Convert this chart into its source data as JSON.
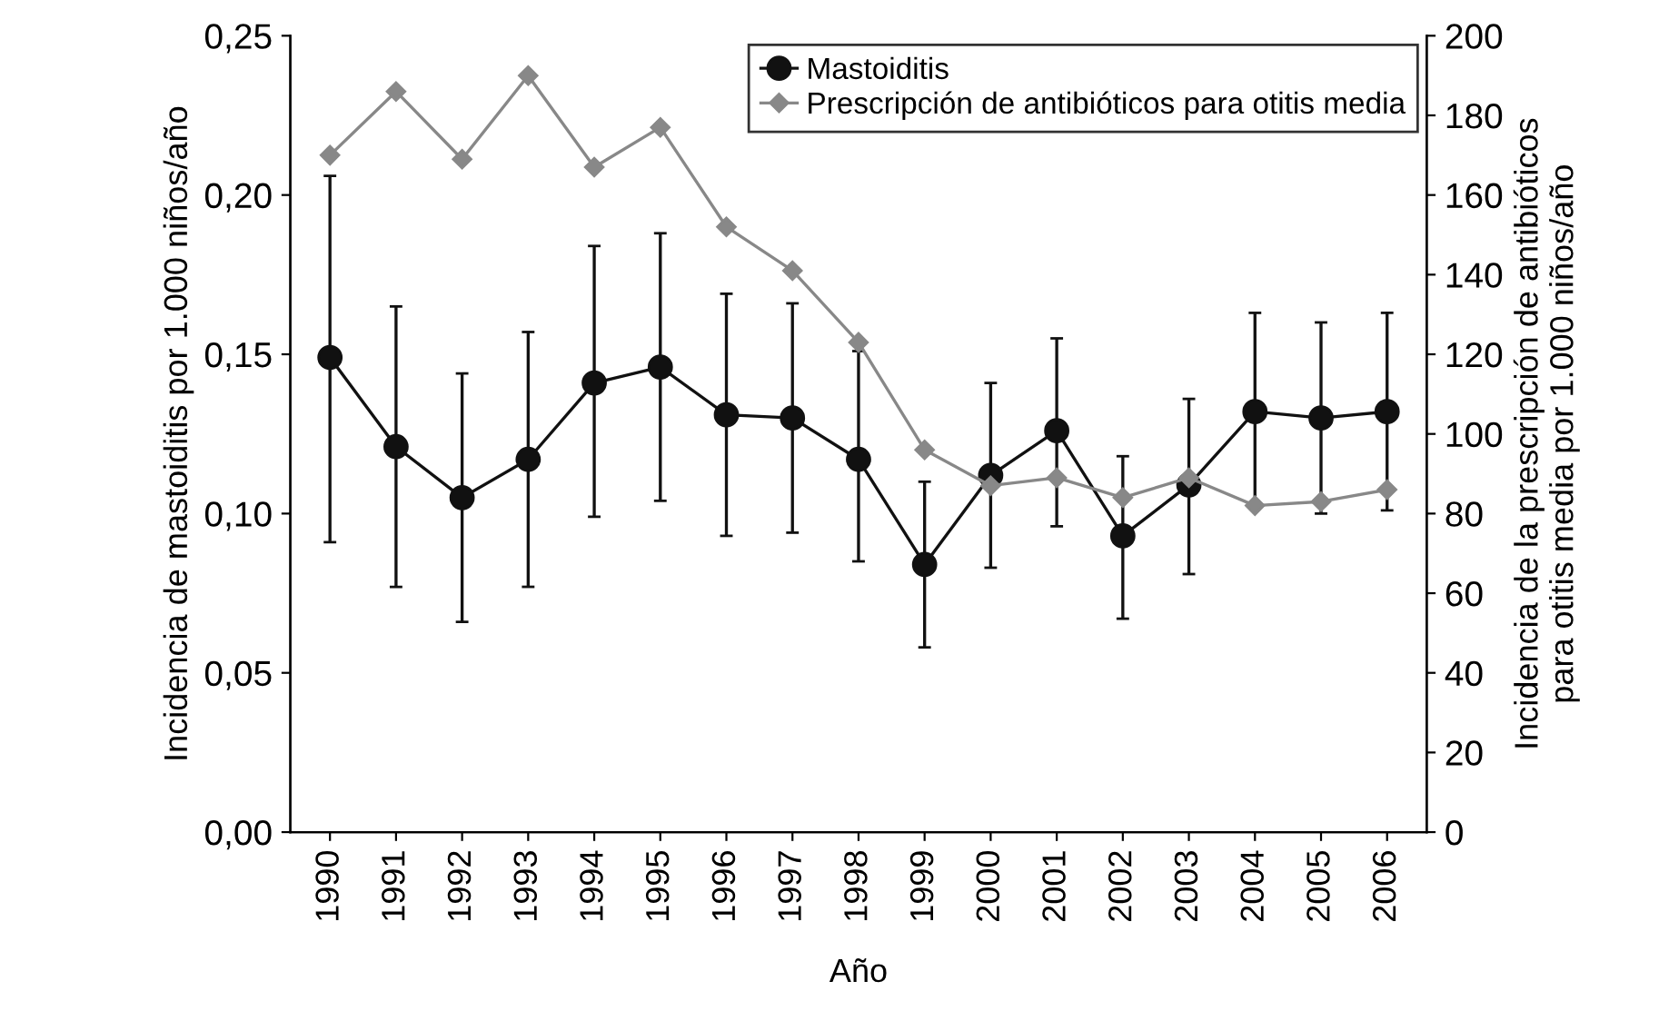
{
  "chart_data": {
    "type": "line",
    "xlabel": "Año",
    "ylabel": "Incidencia de mastoiditis por 1.000 niños/año",
    "y2label": "Incidencia de la prescripción de antibióticos\npara otitis media por 1.000 niños/año",
    "categories": [
      "1990",
      "1991",
      "1992",
      "1993",
      "1994",
      "1995",
      "1996",
      "1997",
      "1998",
      "1999",
      "2000",
      "2001",
      "2002",
      "2003",
      "2004",
      "2005",
      "2006"
    ],
    "series": [
      {
        "name": "Mastoiditis",
        "color": "#111111",
        "marker": "circle",
        "values": [
          0.149,
          0.121,
          0.105,
          0.117,
          0.141,
          0.146,
          0.131,
          0.13,
          0.117,
          0.084,
          0.112,
          0.126,
          0.093,
          0.109,
          0.132,
          0.13,
          0.132
        ],
        "errors": [
          [
            0.091,
            0.206
          ],
          [
            0.077,
            0.165
          ],
          [
            0.066,
            0.144
          ],
          [
            0.077,
            0.157
          ],
          [
            0.099,
            0.184
          ],
          [
            0.104,
            0.188
          ],
          [
            0.093,
            0.169
          ],
          [
            0.094,
            0.166
          ],
          [
            0.085,
            0.151
          ],
          [
            0.058,
            0.11
          ],
          [
            0.083,
            0.141
          ],
          [
            0.096,
            0.155
          ],
          [
            0.067,
            0.118
          ],
          [
            0.081,
            0.136
          ],
          [
            0.102,
            0.163
          ],
          [
            0.1,
            0.16
          ],
          [
            0.101,
            0.163
          ]
        ]
      },
      {
        "name": "Prescripción de antibióticos para otitis media",
        "color": "#888888",
        "marker": "diamond",
        "axis": "y2",
        "values": [
          170,
          186,
          169,
          190,
          167,
          177,
          152,
          141,
          123,
          96,
          87,
          89,
          84,
          89,
          82,
          83,
          86
        ]
      }
    ],
    "ylim": [
      0,
      0.25
    ],
    "yticks": [
      {
        "value": 0,
        "label": "0,00"
      },
      {
        "value": 0.05,
        "label": "0,05"
      },
      {
        "value": 0.1,
        "label": "0,10"
      },
      {
        "value": 0.15,
        "label": "0,15"
      },
      {
        "value": 0.2,
        "label": "0,20"
      },
      {
        "value": 0.25,
        "label": "0,25"
      }
    ],
    "y2lim": [
      0,
      200
    ],
    "y2ticks": [
      0,
      20,
      40,
      60,
      80,
      100,
      120,
      140,
      160,
      180,
      200
    ],
    "legend": "top right",
    "grid": false
  }
}
